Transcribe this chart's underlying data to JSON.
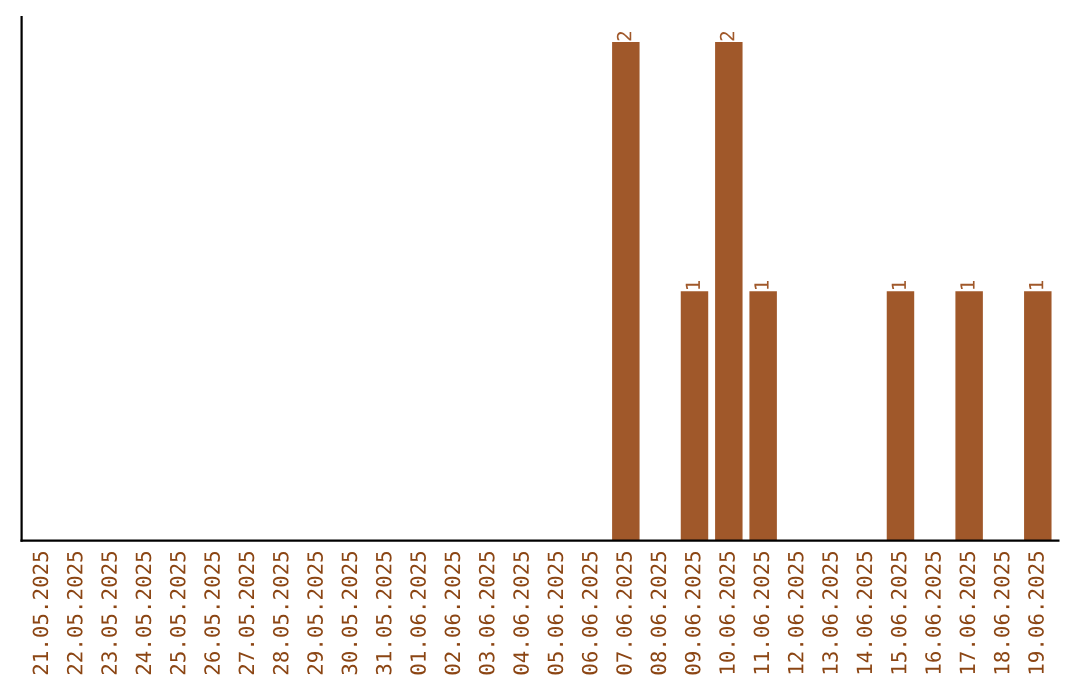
{
  "chart_data": {
    "type": "bar",
    "categories": [
      "21.05.2025",
      "22.05.2025",
      "23.05.2025",
      "24.05.2025",
      "25.05.2025",
      "26.05.2025",
      "27.05.2025",
      "28.05.2025",
      "29.05.2025",
      "30.05.2025",
      "31.05.2025",
      "01.06.2025",
      "02.06.2025",
      "03.06.2025",
      "04.06.2025",
      "05.06.2025",
      "06.06.2025",
      "07.06.2025",
      "08.06.2025",
      "09.06.2025",
      "10.06.2025",
      "11.06.2025",
      "12.06.2025",
      "13.06.2025",
      "14.06.2025",
      "15.06.2025",
      "16.06.2025",
      "17.06.2025",
      "18.06.2025",
      "19.06.2025"
    ],
    "values": [
      null,
      null,
      null,
      null,
      null,
      null,
      null,
      null,
      null,
      null,
      null,
      null,
      null,
      null,
      null,
      null,
      null,
      2,
      null,
      1,
      2,
      1,
      null,
      null,
      null,
      1,
      null,
      1,
      null,
      1
    ],
    "value_labels": [
      null,
      null,
      null,
      null,
      null,
      null,
      null,
      null,
      null,
      null,
      null,
      null,
      null,
      null,
      null,
      null,
      null,
      "2",
      null,
      "1",
      "2",
      "1",
      null,
      null,
      null,
      "1",
      null,
      "1",
      null,
      "1"
    ],
    "color": "#a0582a",
    "tick_labels": "x",
    "grid": false
  }
}
